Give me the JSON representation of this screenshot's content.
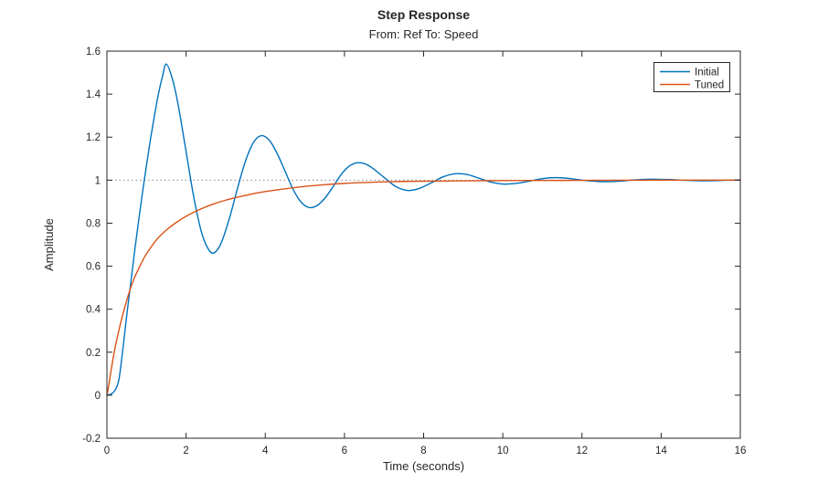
{
  "chart_data": {
    "type": "line",
    "title": "Step Response",
    "subtitle": "From: Ref  To: Speed",
    "xlabel": "Time (seconds)",
    "ylabel": "Amplitude",
    "xlim": [
      0,
      16
    ],
    "ylim": [
      -0.2,
      1.6
    ],
    "x_ticks": [
      0,
      2,
      4,
      6,
      8,
      10,
      12,
      14,
      16
    ],
    "y_ticks": [
      -0.2,
      0,
      0.2,
      0.4,
      0.6,
      0.8,
      1,
      1.2,
      1.4,
      1.6
    ],
    "grid": false,
    "axis_color": "#262626",
    "background_color": "#ffffff",
    "reference_line": {
      "y": 1,
      "style": "dotted",
      "color": "#878787"
    },
    "legend": {
      "position": "top-right",
      "border_color": "#262626"
    },
    "series": [
      {
        "name": "Initial",
        "color": "#0072BD",
        "points": [
          [
            0,
            0
          ],
          [
            0.1,
            0.005
          ],
          [
            0.2,
            0.022
          ],
          [
            0.3,
            0.07
          ],
          [
            0.4,
            0.21
          ],
          [
            0.5,
            0.37
          ],
          [
            0.6,
            0.52
          ],
          [
            0.7,
            0.67
          ],
          [
            0.8,
            0.81
          ],
          [
            0.9,
            0.945
          ],
          [
            1,
            1.07
          ],
          [
            1.1,
            1.19
          ],
          [
            1.2,
            1.3
          ],
          [
            1.3,
            1.4
          ],
          [
            1.4,
            1.48
          ],
          [
            1.5,
            1.54
          ],
          [
            1.65,
            1.473
          ],
          [
            1.8,
            1.35
          ],
          [
            2,
            1.132
          ],
          [
            2.2,
            0.915
          ],
          [
            2.4,
            0.751
          ],
          [
            2.6,
            0.669
          ],
          [
            2.75,
            0.668
          ],
          [
            2.9,
            0.714
          ],
          [
            3.1,
            0.826
          ],
          [
            3.3,
            0.963
          ],
          [
            3.5,
            1.089
          ],
          [
            3.7,
            1.175
          ],
          [
            3.9,
            1.207
          ],
          [
            4.1,
            1.186
          ],
          [
            4.3,
            1.124
          ],
          [
            4.5,
            1.042
          ],
          [
            4.7,
            0.958
          ],
          [
            4.9,
            0.899
          ],
          [
            5.1,
            0.873
          ],
          [
            5.3,
            0.881
          ],
          [
            5.5,
            0.915
          ],
          [
            5.7,
            0.966
          ],
          [
            5.9,
            1.022
          ],
          [
            6.1,
            1.062
          ],
          [
            6.3,
            1.08
          ],
          [
            6.5,
            1.077
          ],
          [
            6.7,
            1.057
          ],
          [
            7,
            1.013
          ],
          [
            7.3,
            0.97
          ],
          [
            7.6,
            0.952
          ],
          [
            7.9,
            0.962
          ],
          [
            8.2,
            0.988
          ],
          [
            8.5,
            1.016
          ],
          [
            8.8,
            1.03
          ],
          [
            9.1,
            1.026
          ],
          [
            9.4,
            1.009
          ],
          [
            9.7,
            0.991
          ],
          [
            10,
            0.982
          ],
          [
            10.3,
            0.984
          ],
          [
            10.6,
            0.993
          ],
          [
            10.9,
            1.004
          ],
          [
            11.2,
            1.011
          ],
          [
            11.5,
            1.011
          ],
          [
            11.8,
            1.005
          ],
          [
            12.1,
            0.998
          ],
          [
            12.4,
            0.994
          ],
          [
            12.7,
            0.993
          ],
          [
            13,
            0.996
          ],
          [
            13.3,
            1.001
          ],
          [
            13.6,
            1.004
          ],
          [
            13.9,
            1.004
          ],
          [
            14.2,
            1.003
          ],
          [
            14.5,
            1
          ],
          [
            14.8,
            0.998
          ],
          [
            15.1,
            0.997
          ],
          [
            15.4,
            0.998
          ],
          [
            15.7,
            1
          ],
          [
            16,
            1.001
          ]
        ]
      },
      {
        "name": "Tuned",
        "color": "#D95319",
        "points": [
          [
            0,
            0
          ],
          [
            0.05,
            0.05
          ],
          [
            0.1,
            0.11
          ],
          [
            0.15,
            0.165
          ],
          [
            0.2,
            0.215
          ],
          [
            0.3,
            0.3
          ],
          [
            0.4,
            0.375
          ],
          [
            0.5,
            0.44
          ],
          [
            0.6,
            0.5
          ],
          [
            0.7,
            0.548
          ],
          [
            0.8,
            0.588
          ],
          [
            0.9,
            0.625
          ],
          [
            1,
            0.658
          ],
          [
            1.25,
            0.722
          ],
          [
            1.5,
            0.768
          ],
          [
            1.75,
            0.803
          ],
          [
            2,
            0.832
          ],
          [
            2.25,
            0.856
          ],
          [
            2.5,
            0.876
          ],
          [
            2.75,
            0.893
          ],
          [
            3,
            0.907
          ],
          [
            3.25,
            0.919
          ],
          [
            3.5,
            0.929
          ],
          [
            3.75,
            0.939
          ],
          [
            4,
            0.947
          ],
          [
            4.5,
            0.96
          ],
          [
            5,
            0.971
          ],
          [
            5.5,
            0.979
          ],
          [
            6,
            0.985
          ],
          [
            6.5,
            0.989
          ],
          [
            7,
            0.992
          ],
          [
            7.5,
            0.994
          ],
          [
            8,
            0.995
          ],
          [
            8.5,
            0.996
          ],
          [
            9,
            0.997
          ],
          [
            9.5,
            0.9975
          ],
          [
            10,
            0.998
          ],
          [
            11,
            0.9985
          ],
          [
            12,
            0.999
          ],
          [
            13,
            0.9995
          ],
          [
            14,
            1
          ],
          [
            15,
            1
          ],
          [
            16,
            1
          ]
        ]
      }
    ]
  }
}
